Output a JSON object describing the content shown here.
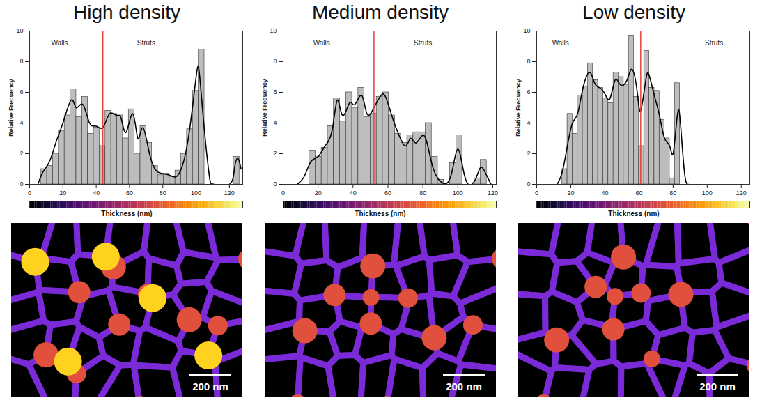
{
  "chart_data": [
    {
      "type": "histogram",
      "title": "High density",
      "xlabel": "Thickness (nm)",
      "ylabel": "Relative Frequency",
      "xlim": [
        0,
        128
      ],
      "xticks": [
        0,
        20,
        40,
        60,
        80,
        100,
        120
      ],
      "ylim": [
        0,
        10
      ],
      "yticks": [
        0,
        2,
        4,
        6,
        8,
        10
      ],
      "bins": [
        7,
        10.5,
        14,
        17.5,
        21,
        24.5,
        28,
        31.5,
        35,
        38.5,
        42,
        45.5,
        49,
        52.5,
        56,
        59.5,
        63,
        66.5,
        70,
        73.5,
        77,
        80.5,
        84,
        87.5,
        91,
        94.5,
        98,
        101.5,
        105,
        108.5,
        112,
        115.5,
        119,
        122.5,
        126
      ],
      "values": [
        1.0,
        1.2,
        2.0,
        3.5,
        4.5,
        6.2,
        4.4,
        5.7,
        3.3,
        3.7,
        2.5,
        4.8,
        4.6,
        4.5,
        3.0,
        4.9,
        2.0,
        3.8,
        2.7,
        1.2,
        0.6,
        0.7,
        0.5,
        0.9,
        2.0,
        3.6,
        6.1,
        8.8,
        0,
        0,
        0,
        0,
        0,
        1.8
      ],
      "color": "#bdbdbd",
      "curve": {
        "color": "#000000",
        "x": [
          5,
          8,
          12,
          16,
          20,
          25,
          28,
          32,
          36,
          40,
          44,
          48,
          52,
          55,
          58,
          62,
          65,
          68,
          72,
          76,
          80,
          84,
          88,
          92,
          96,
          100,
          102,
          105,
          108,
          111,
          120,
          123,
          125,
          127
        ],
        "y": [
          0,
          0.8,
          1.5,
          2.8,
          4.0,
          5.5,
          5.0,
          5.2,
          4.0,
          3.8,
          3.7,
          4.6,
          4.5,
          4.3,
          3.4,
          4.6,
          3.0,
          3.7,
          2.0,
          0.9,
          0.7,
          0.6,
          0.5,
          1.3,
          3.5,
          7.0,
          7.2,
          3.5,
          0.5,
          0,
          0,
          1.0,
          1.7,
          1.0
        ]
      },
      "divider": {
        "x": 44,
        "color": "#e8413a"
      },
      "annotations": [
        {
          "text": "Walls",
          "x": 18,
          "y": 9.2
        },
        {
          "text": "Struts",
          "x": 70,
          "y": 9.2
        }
      ],
      "colorbar_range": [
        0,
        128
      ],
      "scale_bar": "200 nm"
    },
    {
      "type": "histogram",
      "title": "Medium density",
      "xlabel": "Thickness (nm)",
      "ylabel": "Relative Frequency",
      "xlim": [
        0,
        122
      ],
      "xticks": [
        0,
        20,
        40,
        60,
        80,
        100,
        120
      ],
      "ylim": [
        0,
        10
      ],
      "yticks": [
        0,
        2,
        4,
        6,
        8,
        10
      ],
      "bins": [
        15,
        18.5,
        22,
        25.5,
        29,
        32.5,
        36,
        39.5,
        43,
        46.5,
        50,
        53.5,
        57,
        60.5,
        64,
        67.5,
        71,
        74.5,
        78,
        81.5,
        85,
        88.5,
        92,
        95.5,
        99,
        102.5,
        106,
        109.5,
        113,
        116.5
      ],
      "values": [
        2.2,
        1.8,
        2.4,
        3.8,
        5.6,
        4.1,
        6.0,
        5.0,
        6.3,
        4.4,
        4.6,
        5.7,
        6.0,
        4.5,
        3.3,
        2.7,
        3.2,
        3.4,
        3.4,
        4.0,
        1.8,
        0.3,
        0,
        1.4,
        3.2,
        0,
        0,
        0.4,
        1.6
      ],
      "color": "#bdbdbd",
      "curve": {
        "color": "#000000",
        "x": [
          8,
          12,
          16,
          20,
          24,
          28,
          31,
          34,
          38,
          41,
          45,
          48,
          52,
          56,
          59,
          63,
          66,
          70,
          73,
          76,
          80,
          83,
          86,
          90,
          94,
          97,
          100,
          103,
          106,
          110,
          113,
          116,
          119
        ],
        "y": [
          0,
          0.5,
          1.5,
          1.8,
          2.5,
          3.5,
          5.5,
          4.5,
          5.3,
          5.2,
          5.8,
          4.6,
          5.0,
          5.8,
          5.6,
          4.2,
          3.3,
          2.5,
          3.0,
          2.7,
          3.2,
          2.4,
          1.0,
          0.2,
          0.1,
          1.0,
          2.3,
          1.0,
          0,
          0.3,
          1.1,
          0.7,
          0
        ]
      },
      "divider": {
        "x": 52,
        "color": "#e8413a"
      },
      "annotations": [
        {
          "text": "Walls",
          "x": 22,
          "y": 9.2
        },
        {
          "text": "Struts",
          "x": 80,
          "y": 9.2
        }
      ],
      "colorbar_range": [
        0,
        122
      ],
      "scale_bar": "200 nm"
    },
    {
      "type": "histogram",
      "title": "Low density",
      "xlabel": "Thickness (nm)",
      "ylabel": "Relative Frequency",
      "xlim": [
        0,
        125
      ],
      "xticks": [
        0,
        20,
        40,
        60,
        80,
        100,
        120
      ],
      "ylim": [
        0,
        10
      ],
      "yticks": [
        0,
        2,
        4,
        6,
        8,
        10
      ],
      "bins": [
        15,
        18,
        21,
        24,
        27,
        30,
        33,
        36,
        39,
        42,
        45,
        48,
        51,
        54,
        57,
        60,
        63,
        66,
        69,
        72,
        75,
        78,
        81,
        84
      ],
      "values": [
        1.0,
        4.6,
        3.3,
        5.8,
        6.4,
        7.9,
        6.8,
        6.3,
        5.6,
        5.3,
        7.3,
        7.0,
        6.5,
        9.7,
        5.7,
        2.5,
        8.7,
        6.3,
        6.1,
        4.2,
        3.0,
        0.4,
        6.6
      ],
      "color": "#bdbdbd",
      "curve": {
        "color": "#000000",
        "x": [
          12,
          15,
          18,
          21,
          24,
          27,
          31,
          34,
          37,
          40,
          43,
          46,
          49,
          53,
          56,
          59,
          61,
          64,
          66,
          69,
          72,
          75,
          78,
          80,
          82,
          83.5,
          85,
          87,
          89
        ],
        "y": [
          0,
          0.8,
          2.5,
          4.0,
          4.6,
          6.2,
          7.3,
          6.6,
          6.3,
          5.9,
          5.6,
          6.8,
          6.5,
          6.8,
          7.5,
          6.0,
          4.8,
          6.8,
          7.1,
          5.8,
          4.5,
          3.0,
          2.5,
          2.0,
          4.0,
          4.8,
          3.0,
          0.5,
          0
        ]
      },
      "divider": {
        "x": 61,
        "color": "#e8413a"
      },
      "annotations": [
        {
          "text": "Walls",
          "x": 14,
          "y": 9.2
        },
        {
          "text": "Struts",
          "x": 104,
          "y": 9.2
        }
      ],
      "colorbar_range": [
        0,
        125
      ],
      "scale_bar": "200 nm"
    }
  ]
}
